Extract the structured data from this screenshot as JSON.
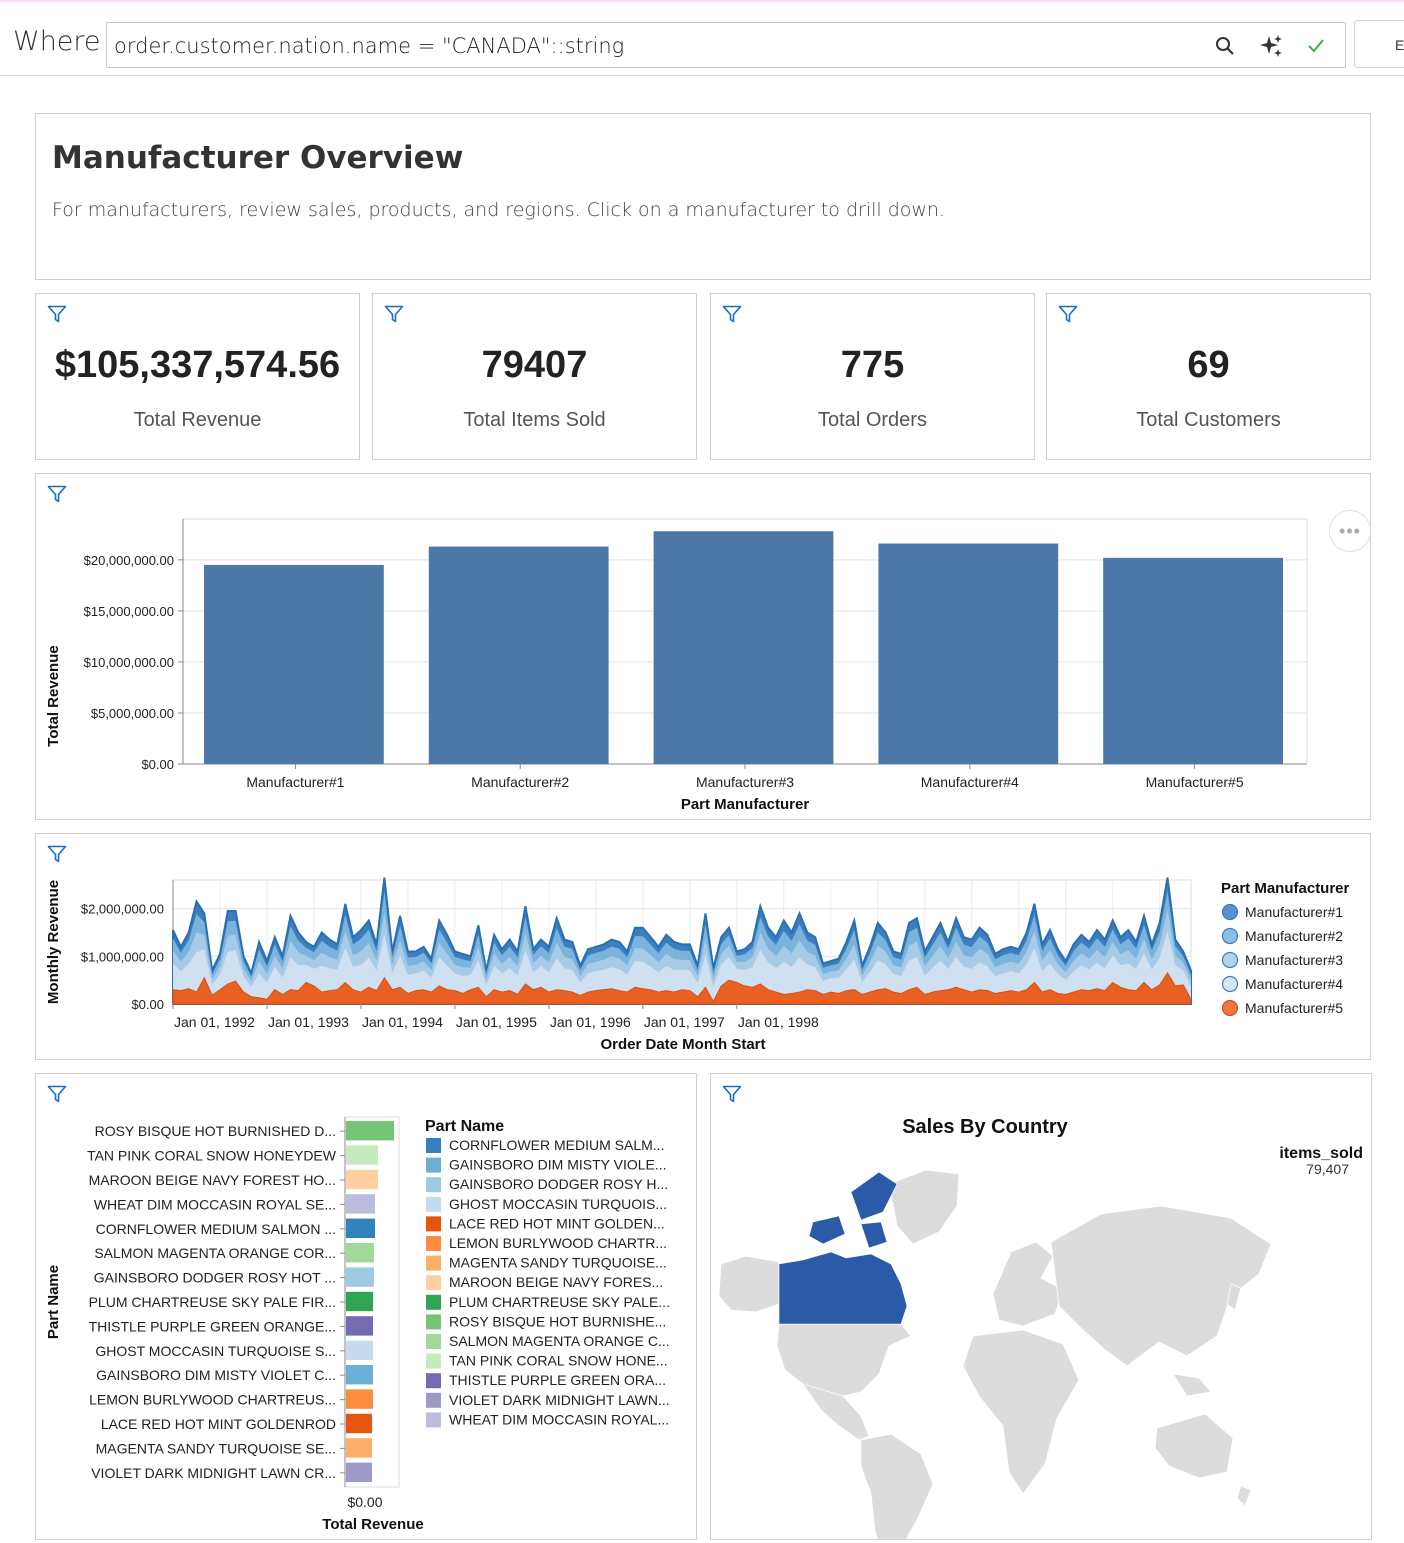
{
  "topbar": {
    "where_label": "Where",
    "query": "order.customer.nation.name = \"CANADA\"::string",
    "side_button_label": "E"
  },
  "header": {
    "title": "Manufacturer Overview",
    "description": "For manufacturers, review sales, products, and regions. Click on a manufacturer to drill down."
  },
  "kpis": [
    {
      "value": "$105,337,574.56",
      "label": "Total Revenue"
    },
    {
      "value": "79407",
      "label": "Total Items Sold"
    },
    {
      "value": "775",
      "label": "Total Orders"
    },
    {
      "value": "69",
      "label": "Total Customers"
    }
  ],
  "colors": {
    "accent": "#1a6dc0",
    "bar": "#4c78a8",
    "map_highlight": "#2a5aa8",
    "map_land": "#dcdcdc",
    "series": [
      "#3b7fc0",
      "#7ab3dc",
      "#a7cbe6",
      "#cfe0f0",
      "#ea6020"
    ]
  },
  "chart_data": [
    {
      "type": "bar",
      "categories": [
        "Manufacturer#1",
        "Manufacturer#2",
        "Manufacturer#3",
        "Manufacturer#4",
        "Manufacturer#5"
      ],
      "values": [
        19500000,
        21300000,
        22800000,
        21600000,
        20200000
      ],
      "xlabel": "Part Manufacturer",
      "ylabel": "Total Revenue",
      "ylim": [
        0,
        24000000
      ],
      "yticks": [
        "$0.00",
        "$5,000,000.00",
        "$10,000,000.00",
        "$15,000,000.00",
        "$20,000,000.00"
      ],
      "grid": true
    },
    {
      "type": "area",
      "stacked": true,
      "xlabel": "Order Date Month Start",
      "ylabel": "Monthly Revenue",
      "xticks": [
        "Jan 01, 1992",
        "Jan 01, 1993",
        "Jan 01, 1994",
        "Jan 01, 1995",
        "Jan 01, 1996",
        "Jan 01, 1997",
        "Jan 01, 1998"
      ],
      "yticks": [
        "$0.00",
        "$1,000,000.00",
        "$2,000,000.00"
      ],
      "ylim": [
        0,
        2600000
      ],
      "x_start": "1992-01",
      "x_end": "1998-08",
      "legend_title": "Part Manufacturer",
      "legend_position": "right",
      "series_names": [
        "Manufacturer#1",
        "Manufacturer#2",
        "Manufacturer#3",
        "Manufacturer#4",
        "Manufacturer#5"
      ],
      "totals": [
        1550000,
        1200000,
        1500000,
        2150000,
        1900000,
        700000,
        1050000,
        1950000,
        1950000,
        1000000,
        650000,
        1300000,
        900000,
        1400000,
        1000000,
        1850000,
        1500000,
        1300000,
        1200000,
        1500000,
        1350000,
        1250000,
        2100000,
        1400000,
        1550000,
        1750000,
        1250000,
        2650000,
        1100000,
        1850000,
        1100000,
        1100000,
        1200000,
        950000,
        1750000,
        1450000,
        1100000,
        1050000,
        1000000,
        1650000,
        700000,
        1450000,
        1150000,
        1350000,
        1100000,
        2050000,
        1150000,
        1350000,
        1200000,
        1800000,
        1350000,
        1300000,
        800000,
        1150000,
        1200000,
        1250000,
        1350000,
        1300000,
        1100000,
        1600000,
        1600000,
        1400000,
        1200000,
        1450000,
        1300000,
        1250000,
        1250000,
        800000,
        1900000,
        750000,
        1400000,
        1600000,
        1100000,
        1150000,
        1300000,
        2050000,
        1600000,
        1400000,
        1750000,
        1500000,
        1900000,
        1500000,
        1400000,
        850000,
        900000,
        950000,
        1300000,
        1750000,
        800000,
        1200000,
        1700000,
        1500000,
        1100000,
        1050000,
        1700000,
        1800000,
        1100000,
        1400000,
        1700000,
        1300000,
        1800000,
        1400000,
        1350000,
        1600000,
        1450000,
        1050000,
        1150000,
        1200000,
        1150000,
        1500000,
        2100000,
        1250000,
        1550000,
        1150000,
        900000,
        1250000,
        1450000,
        1300000,
        1550000,
        1350000,
        1750000,
        1400000,
        1550000,
        1300000,
        1850000,
        1250000,
        1700000,
        2650000,
        1350000,
        1100000,
        700000
      ],
      "manufacturer5": [
        300000,
        280000,
        320000,
        250000,
        550000,
        180000,
        300000,
        420000,
        480000,
        250000,
        150000,
        130000,
        100000,
        300000,
        200000,
        300000,
        280000,
        450000,
        380000,
        250000,
        280000,
        300000,
        450000,
        300000,
        250000,
        350000,
        280000,
        550000,
        300000,
        350000,
        220000,
        280000,
        300000,
        250000,
        380000,
        300000,
        280000,
        220000,
        300000,
        350000,
        150000,
        300000,
        250000,
        280000,
        200000,
        420000,
        300000,
        350000,
        250000,
        300000,
        280000,
        250000,
        180000,
        250000,
        280000,
        300000,
        320000,
        280000,
        250000,
        350000,
        320000,
        300000,
        250000,
        280000,
        250000,
        300000,
        280000,
        150000,
        350000,
        50000,
        380000,
        500000,
        450000,
        380000,
        350000,
        420000,
        300000,
        250000,
        200000,
        220000,
        250000,
        300000,
        280000,
        200000,
        250000,
        220000,
        280000,
        300000,
        200000,
        250000,
        300000,
        320000,
        250000,
        220000,
        300000,
        350000,
        200000,
        250000,
        280000,
        300000,
        350000,
        300000,
        250000,
        300000,
        280000,
        220000,
        250000,
        280000,
        250000,
        300000,
        450000,
        250000,
        300000,
        220000,
        200000,
        250000,
        300000,
        280000,
        320000,
        280000,
        450000,
        350000,
        300000,
        280000,
        450000,
        300000,
        400000,
        650000,
        380000,
        400000,
        100000
      ]
    },
    {
      "type": "bar",
      "orientation": "horizontal",
      "xlabel": "Total Revenue",
      "ylabel": "Part Name",
      "xticks": [
        "$0.00"
      ],
      "categories": [
        "ROSY BISQUE HOT BURNISHED D...",
        "TAN PINK CORAL SNOW HONEYDEW",
        "MAROON BEIGE NAVY FOREST HO...",
        "WHEAT DIM MOCCASIN ROYAL SE...",
        "CORNFLOWER MEDIUM SALMON ...",
        "SALMON MAGENTA ORANGE COR...",
        "GAINSBORO DODGER ROSY HOT ...",
        "PLUM CHARTREUSE SKY PALE FIR...",
        "THISTLE PURPLE GREEN ORANGE...",
        "GHOST MOCCASIN TURQUOISE S...",
        "GAINSBORO DIM MISTY VIOLET C...",
        "LEMON BURLYWOOD CHARTREUS...",
        "LACE RED HOT MINT GOLDENROD",
        "MAGENTA SANDY TURQUOISE SE...",
        "VIOLET DARK MIDNIGHT LAWN CR..."
      ],
      "values": [
        48,
        32,
        32,
        29,
        29,
        28,
        28,
        27,
        27,
        27,
        27,
        27,
        26,
        26,
        26
      ],
      "bar_colors": [
        "#74c476",
        "#c7e9c0",
        "#fdd0a2",
        "#bcbddc",
        "#3182bd",
        "#a1d99b",
        "#9ecae1",
        "#31a354",
        "#756bb1",
        "#c6dbef",
        "#6baed6",
        "#fd8d3c",
        "#e6550d",
        "#fdae6b",
        "#9e9ac8"
      ],
      "legend_title": "Part Name",
      "legend": [
        {
          "label": "CORNFLOWER MEDIUM SALM...",
          "color": "#3182bd"
        },
        {
          "label": "GAINSBORO DIM MISTY VIOLE...",
          "color": "#6baed6"
        },
        {
          "label": "GAINSBORO DODGER ROSY H...",
          "color": "#9ecae1"
        },
        {
          "label": "GHOST MOCCASIN TURQUOIS...",
          "color": "#c6dbef"
        },
        {
          "label": "LACE RED HOT MINT GOLDEN...",
          "color": "#e6550d"
        },
        {
          "label": "LEMON BURLYWOOD CHARTR...",
          "color": "#fd8d3c"
        },
        {
          "label": "MAGENTA SANDY TURQUOISE...",
          "color": "#fdae6b"
        },
        {
          "label": "MAROON BEIGE NAVY FORES...",
          "color": "#fdd0a2"
        },
        {
          "label": "PLUM CHARTREUSE SKY PALE...",
          "color": "#31a354"
        },
        {
          "label": "ROSY BISQUE HOT BURNISHE...",
          "color": "#74c476"
        },
        {
          "label": "SALMON MAGENTA ORANGE C...",
          "color": "#a1d99b"
        },
        {
          "label": "TAN PINK CORAL SNOW HONE...",
          "color": "#c7e9c0"
        },
        {
          "label": "THISTLE PURPLE GREEN ORA...",
          "color": "#756bb1"
        },
        {
          "label": "VIOLET DARK MIDNIGHT LAWN...",
          "color": "#9e9ac8"
        },
        {
          "label": "WHEAT DIM MOCCASIN ROYAL...",
          "color": "#bcbddc"
        }
      ]
    }
  ],
  "map": {
    "title": "Sales By Country",
    "legend_title": "items_sold",
    "legend_value": "79,407",
    "highlighted_country": "Canada"
  }
}
